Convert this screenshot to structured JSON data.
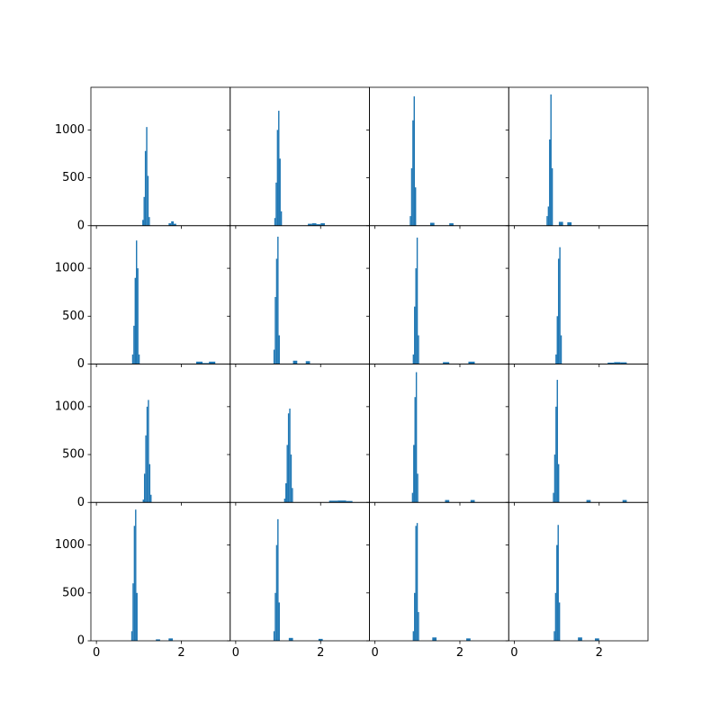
{
  "chart_data": [
    {
      "type": "histogram",
      "color": "#1f77b4",
      "xlim": [
        -0.13,
        3.15
      ],
      "ylim": [
        0,
        1445
      ],
      "xticks": [
        0,
        2
      ],
      "yticks": [
        0,
        500,
        1000
      ],
      "bins": [
        1.08,
        1.11,
        1.14,
        1.17,
        1.2,
        1.23,
        1.26,
        1.7,
        1.76,
        1.82,
        1.88
      ],
      "counts": [
        60,
        300,
        780,
        1030,
        520,
        90,
        0,
        25,
        45,
        20
      ]
    },
    {
      "type": "histogram",
      "color": "#1f77b4",
      "xlim": [
        -0.13,
        3.15
      ],
      "ylim": [
        0,
        1445
      ],
      "xticks": [
        0,
        2
      ],
      "yticks": [
        0,
        500,
        1000
      ],
      "bins": [
        0.91,
        0.94,
        0.97,
        1.0,
        1.03,
        1.06,
        1.09,
        1.7,
        1.8,
        1.9,
        2.0,
        2.1
      ],
      "counts": [
        80,
        450,
        1000,
        1200,
        700,
        150,
        0,
        20,
        25,
        15,
        25
      ]
    },
    {
      "type": "histogram",
      "color": "#1f77b4",
      "xlim": [
        -0.13,
        3.15
      ],
      "ylim": [
        0,
        1445
      ],
      "xticks": [
        0,
        2
      ],
      "yticks": [
        0,
        500,
        1000
      ],
      "bins": [
        0.82,
        0.85,
        0.88,
        0.91,
        0.94,
        0.97,
        1.3,
        1.4,
        1.75,
        1.85
      ],
      "counts": [
        100,
        600,
        1100,
        1350,
        400,
        0,
        30,
        0,
        25
      ]
    },
    {
      "type": "histogram",
      "color": "#1f77b4",
      "xlim": [
        -0.13,
        3.15
      ],
      "ylim": [
        0,
        1445
      ],
      "xticks": [
        0,
        2
      ],
      "yticks": [
        0,
        500,
        1000
      ],
      "bins": [
        0.76,
        0.79,
        0.82,
        0.85,
        0.88,
        0.91,
        1.05,
        1.15,
        1.25,
        1.35
      ],
      "counts": [
        100,
        200,
        900,
        1370,
        600,
        0,
        40,
        0,
        35
      ]
    },
    {
      "type": "histogram",
      "color": "#1f77b4",
      "xlim": [
        -0.13,
        3.15
      ],
      "ylim": [
        0,
        1445
      ],
      "xticks": [
        0,
        2
      ],
      "yticks": [
        0,
        500,
        1000
      ],
      "bins": [
        0.84,
        0.87,
        0.9,
        0.93,
        0.96,
        0.99,
        1.02,
        2.35,
        2.5,
        2.65,
        2.8
      ],
      "counts": [
        100,
        400,
        900,
        1290,
        1000,
        100,
        0,
        25,
        10,
        25
      ]
    },
    {
      "type": "histogram",
      "color": "#1f77b4",
      "xlim": [
        -0.13,
        3.15
      ],
      "ylim": [
        0,
        1445
      ],
      "xticks": [
        0,
        2
      ],
      "yticks": [
        0,
        500,
        1000
      ],
      "bins": [
        0.89,
        0.92,
        0.95,
        0.98,
        1.01,
        1.04,
        1.35,
        1.45,
        1.65,
        1.75
      ],
      "counts": [
        150,
        700,
        1100,
        1330,
        300,
        0,
        35,
        0,
        30
      ]
    },
    {
      "type": "histogram",
      "color": "#1f77b4",
      "xlim": [
        -0.13,
        3.15
      ],
      "ylim": [
        0,
        1445
      ],
      "xticks": [
        0,
        2
      ],
      "yticks": [
        0,
        500,
        1000
      ],
      "bins": [
        0.89,
        0.92,
        0.95,
        0.98,
        1.01,
        1.04,
        1.6,
        1.75,
        2.2,
        2.35
      ],
      "counts": [
        100,
        600,
        1000,
        1320,
        300,
        0,
        20,
        0,
        25
      ]
    },
    {
      "type": "histogram",
      "color": "#1f77b4",
      "xlim": [
        -0.13,
        3.15
      ],
      "ylim": [
        0,
        1445
      ],
      "xticks": [
        0,
        2
      ],
      "yticks": [
        0,
        500,
        1000
      ],
      "bins": [
        0.97,
        1.0,
        1.03,
        1.06,
        1.09,
        1.12,
        2.2,
        2.35,
        2.5,
        2.65
      ],
      "counts": [
        100,
        500,
        1100,
        1220,
        300,
        0,
        15,
        20,
        18
      ]
    },
    {
      "type": "histogram",
      "color": "#1f77b4",
      "xlim": [
        -0.13,
        3.15
      ],
      "ylim": [
        0,
        1445
      ],
      "xticks": [
        0,
        2
      ],
      "yticks": [
        0,
        500,
        1000
      ],
      "bins": [
        1.09,
        1.12,
        1.15,
        1.18,
        1.21,
        1.24,
        1.27,
        1.3
      ],
      "counts": [
        30,
        300,
        700,
        1000,
        1070,
        400,
        80
      ]
    },
    {
      "type": "histogram",
      "color": "#1f77b4",
      "xlim": [
        -0.13,
        3.15
      ],
      "ylim": [
        0,
        1445
      ],
      "xticks": [
        0,
        2
      ],
      "yticks": [
        0,
        500,
        1000
      ],
      "bins": [
        1.14,
        1.17,
        1.2,
        1.23,
        1.26,
        1.29,
        1.32,
        1.35,
        2.2,
        2.4,
        2.6,
        2.75
      ],
      "counts": [
        40,
        200,
        600,
        930,
        980,
        500,
        150,
        0,
        18,
        20,
        15
      ]
    },
    {
      "type": "histogram",
      "color": "#1f77b4",
      "xlim": [
        -0.13,
        3.15
      ],
      "ylim": [
        0,
        1445
      ],
      "xticks": [
        0,
        2
      ],
      "yticks": [
        0,
        500,
        1000
      ],
      "bins": [
        0.87,
        0.9,
        0.93,
        0.96,
        0.99,
        1.02,
        1.65,
        1.75,
        2.25,
        2.35
      ],
      "counts": [
        100,
        600,
        1100,
        1360,
        300,
        0,
        25,
        0,
        25
      ]
    },
    {
      "type": "histogram",
      "color": "#1f77b4",
      "xlim": [
        -0.13,
        3.15
      ],
      "ylim": [
        0,
        1445
      ],
      "xticks": [
        0,
        2
      ],
      "yticks": [
        0,
        500,
        1000
      ],
      "bins": [
        0.91,
        0.94,
        0.97,
        1.0,
        1.03,
        1.06,
        1.7,
        1.8,
        2.55,
        2.65
      ],
      "counts": [
        100,
        500,
        1000,
        1280,
        400,
        0,
        25,
        0,
        25
      ]
    },
    {
      "type": "histogram",
      "color": "#1f77b4",
      "xlim": [
        -0.13,
        3.15
      ],
      "ylim": [
        0,
        1445
      ],
      "xticks": [
        0,
        2
      ],
      "yticks": [
        0,
        500,
        1000
      ],
      "bins": [
        0.82,
        0.85,
        0.88,
        0.91,
        0.94,
        0.97,
        1.4,
        1.5,
        1.7,
        1.8
      ],
      "counts": [
        100,
        600,
        1200,
        1370,
        500,
        0,
        15,
        0,
        25
      ]
    },
    {
      "type": "histogram",
      "color": "#1f77b4",
      "xlim": [
        -0.13,
        3.15
      ],
      "ylim": [
        0,
        1445
      ],
      "xticks": [
        0,
        2
      ],
      "yticks": [
        0,
        500,
        1000
      ],
      "bins": [
        0.89,
        0.92,
        0.95,
        0.98,
        1.01,
        1.04,
        1.25,
        1.35,
        1.95,
        2.05
      ],
      "counts": [
        100,
        500,
        1000,
        1270,
        400,
        0,
        30,
        0,
        20
      ]
    },
    {
      "type": "histogram",
      "color": "#1f77b4",
      "xlim": [
        -0.13,
        3.15
      ],
      "ylim": [
        0,
        1445
      ],
      "xticks": [
        0,
        2
      ],
      "yticks": [
        0,
        500,
        1000
      ],
      "bins": [
        0.89,
        0.92,
        0.95,
        0.98,
        1.01,
        1.04,
        1.35,
        1.45,
        2.15,
        2.25
      ],
      "counts": [
        100,
        500,
        1200,
        1230,
        300,
        0,
        35,
        0,
        25
      ]
    },
    {
      "type": "histogram",
      "color": "#1f77b4",
      "xlim": [
        -0.13,
        3.15
      ],
      "ylim": [
        0,
        1445
      ],
      "xticks": [
        0,
        2
      ],
      "yticks": [
        0,
        500,
        1000
      ],
      "bins": [
        0.93,
        0.96,
        0.99,
        1.02,
        1.05,
        1.08,
        1.5,
        1.6,
        1.9,
        2.0
      ],
      "counts": [
        100,
        500,
        1000,
        1210,
        400,
        0,
        35,
        0,
        25
      ]
    }
  ]
}
